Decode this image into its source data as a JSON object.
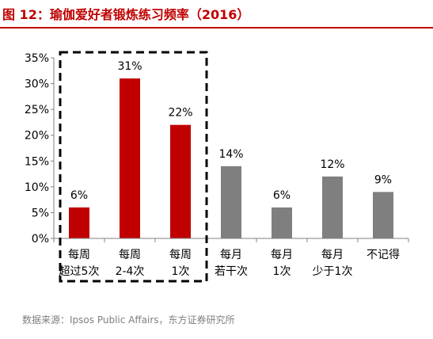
{
  "title": "图 12：瑜伽爱好者锻炼练习频率（2016）",
  "source": "数据来源：Ipsos Public Affairs，东方证券研究所",
  "colors": {
    "title": "#c00000",
    "highlight": "#c00000",
    "other": "#7f7f7f",
    "axis": "#808080",
    "box": "#000000"
  },
  "chart_data": {
    "type": "bar",
    "categories": [
      [
        "每周",
        "超过5次"
      ],
      [
        "每周",
        "2-4次"
      ],
      [
        "每周",
        "1次"
      ],
      [
        "每月",
        "若干次"
      ],
      [
        "每月",
        "1次"
      ],
      [
        "每月",
        "少于1次"
      ],
      [
        "不记得"
      ]
    ],
    "values": [
      6,
      31,
      22,
      14,
      6,
      12,
      9
    ],
    "value_labels": [
      "6%",
      "31%",
      "22%",
      "14%",
      "6%",
      "12%",
      "9%"
    ],
    "bar_colors": [
      "#c00000",
      "#c00000",
      "#c00000",
      "#7f7f7f",
      "#7f7f7f",
      "#7f7f7f",
      "#7f7f7f"
    ],
    "ylim": [
      0,
      35
    ],
    "yticks": [
      0,
      5,
      10,
      15,
      20,
      25,
      30,
      35
    ],
    "ytick_labels": [
      "0%",
      "5%",
      "10%",
      "15%",
      "20%",
      "25%",
      "30%",
      "35%"
    ],
    "highlight_box_categories": [
      0,
      1,
      2
    ],
    "grid": false,
    "legend": "none"
  }
}
